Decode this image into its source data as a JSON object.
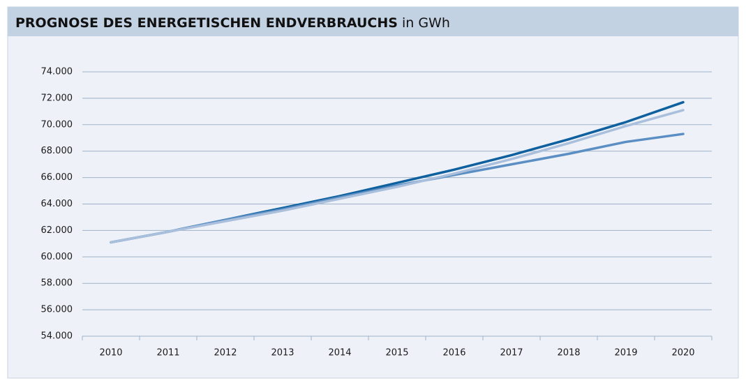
{
  "chart_data": {
    "type": "line",
    "title": "PROGNOSE DES ENERGETISCHEN ENDVERBRAUCHS",
    "subtitle": "in GWh",
    "categories": [
      "2010",
      "2011",
      "2012",
      "2013",
      "2014",
      "2015",
      "2016",
      "2017",
      "2018",
      "2019",
      "2020"
    ],
    "series": [
      {
        "color": "#0e609e",
        "values": [
          61100,
          61900,
          62800,
          63700,
          64600,
          65600,
          66600,
          67700,
          68900,
          70200,
          71700
        ]
      },
      {
        "color": "#5b8fc4",
        "values": [
          61100,
          61900,
          62800,
          63600,
          64500,
          65400,
          66200,
          67000,
          67800,
          68700,
          69300
        ]
      },
      {
        "color": "#a9bfdc",
        "values": [
          61100,
          61900,
          62700,
          63500,
          64400,
          65300,
          66300,
          67400,
          68600,
          69900,
          71100
        ]
      }
    ],
    "ylim": [
      54000,
      74000
    ],
    "yticks": [
      {
        "value": 54000,
        "label": "54.000"
      },
      {
        "value": 56000,
        "label": "56.000"
      },
      {
        "value": 58000,
        "label": "58.000"
      },
      {
        "value": 60000,
        "label": "60.000"
      },
      {
        "value": 62000,
        "label": "62.000"
      },
      {
        "value": 64000,
        "label": "64.000"
      },
      {
        "value": 66000,
        "label": "66.000"
      },
      {
        "value": 68000,
        "label": "68.000"
      },
      {
        "value": 70000,
        "label": "70.000"
      },
      {
        "value": 72000,
        "label": "72.000"
      },
      {
        "value": 74000,
        "label": "74.000"
      }
    ],
    "grid": true
  }
}
